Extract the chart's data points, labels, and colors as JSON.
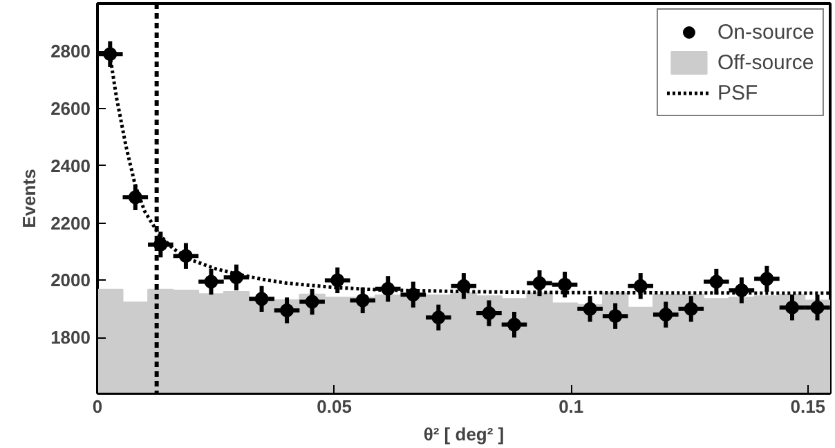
{
  "chart_data": {
    "type": "scatter",
    "xlabel": "θ² [ deg² ]",
    "ylabel": "Events",
    "xlim": [
      0,
      0.1547
    ],
    "ylim": [
      1605,
      2967
    ],
    "xticks": [
      {
        "value": 0,
        "label": "0"
      },
      0.05,
      0.1,
      0.15
    ],
    "yticks": [
      1800,
      2000,
      2200,
      2400,
      2600,
      2800
    ],
    "grid": false,
    "legend": "top right",
    "ref_lines": [
      {
        "axis": "x",
        "value": 0.0125,
        "line_style": "dashed",
        "color": "#000000"
      }
    ],
    "series": [
      {
        "name": "Off-source",
        "type": "histogram",
        "color": "#cccccc",
        "bins": [
          0,
          0.00533,
          0.01067,
          0.016,
          0.02133,
          0.02667,
          0.032,
          0.03733,
          0.04267,
          0.048,
          0.05333,
          0.05867,
          0.064,
          0.06933,
          0.07467,
          0.08,
          0.08533,
          0.09067,
          0.096,
          0.10133,
          0.10667,
          0.112,
          0.11733,
          0.12267,
          0.128,
          0.13333,
          0.13867,
          0.144,
          0.14933,
          0.1547
        ],
        "values": [
          1968,
          1923,
          1968,
          1965,
          1952,
          1960,
          1940,
          1931,
          1951,
          1940,
          1940,
          1948,
          1950,
          1948,
          1955,
          1945,
          1935,
          1955,
          1920,
          1915,
          1955,
          1905,
          1950,
          1950,
          1935,
          1940,
          1945,
          1950,
          1930
        ]
      },
      {
        "name": "PSF",
        "type": "line",
        "color": "#000000",
        "line_style": "dotted",
        "x": [
          0.0026,
          0.004,
          0.006,
          0.008,
          0.01,
          0.013,
          0.016,
          0.02,
          0.025,
          0.03,
          0.035,
          0.04,
          0.05,
          0.06,
          0.08,
          0.1,
          0.12,
          0.1547
        ],
        "values": [
          2790,
          2640,
          2470,
          2330,
          2240,
          2160,
          2110,
          2070,
          2040,
          2020,
          2003,
          1990,
          1975,
          1966,
          1960,
          1957,
          1956,
          1955
        ]
      },
      {
        "name": "On-source",
        "color": "#000000",
        "marker": "circle",
        "x": [
          0.00267,
          0.008,
          0.01333,
          0.01867,
          0.024,
          0.02933,
          0.03467,
          0.04,
          0.04533,
          0.05067,
          0.056,
          0.06133,
          0.06667,
          0.072,
          0.07733,
          0.08267,
          0.088,
          0.09333,
          0.09867,
          0.104,
          0.10933,
          0.11467,
          0.12,
          0.12533,
          0.13067,
          0.136,
          0.14133,
          0.14667,
          0.152
        ],
        "values": [
          2790,
          2290,
          2125,
          2085,
          1995,
          2010,
          1935,
          1895,
          1925,
          2000,
          1930,
          1970,
          1950,
          1870,
          1980,
          1885,
          1845,
          1990,
          1985,
          1900,
          1875,
          1980,
          1880,
          1900,
          1995,
          1965,
          2005,
          1905,
          1905
        ],
        "errors": [
          45,
          45,
          45,
          45,
          45,
          45,
          45,
          45,
          45,
          45,
          45,
          45,
          45,
          45,
          45,
          45,
          45,
          45,
          45,
          45,
          45,
          45,
          45,
          45,
          45,
          45,
          45,
          45,
          45
        ],
        "xerrors": [
          0.00267,
          0.00267,
          0.00267,
          0.00267,
          0.00267,
          0.00267,
          0.00267,
          0.00267,
          0.00267,
          0.00267,
          0.00267,
          0.00267,
          0.00267,
          0.00267,
          0.00267,
          0.00267,
          0.00267,
          0.00267,
          0.00267,
          0.00267,
          0.00267,
          0.00267,
          0.00267,
          0.00267,
          0.00267,
          0.00267,
          0.00267,
          0.00267,
          0.00267
        ]
      }
    ]
  }
}
